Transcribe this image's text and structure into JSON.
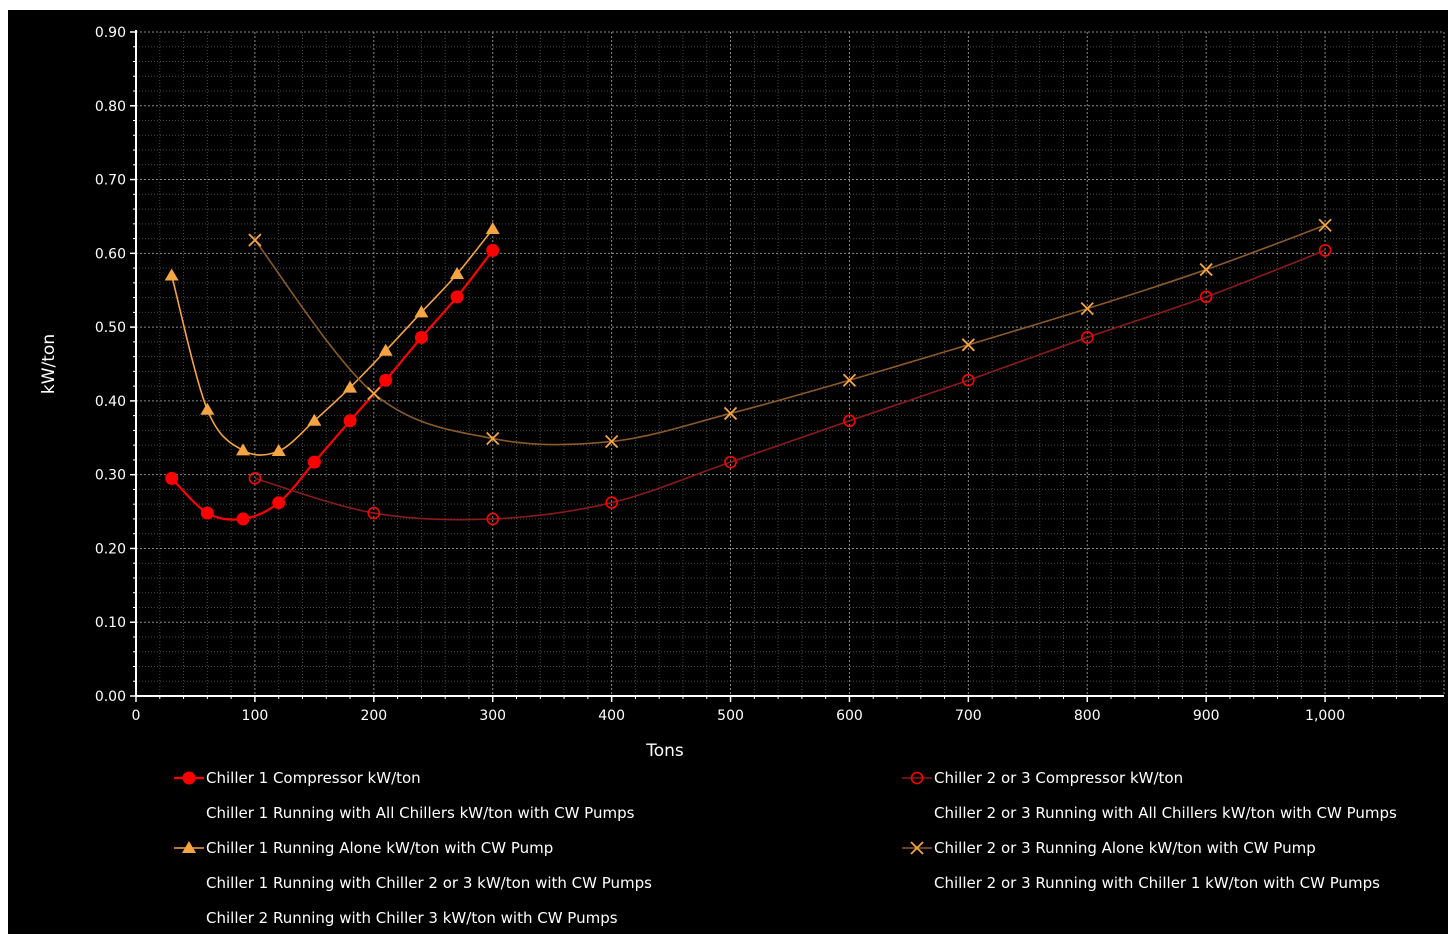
{
  "chart_data": {
    "type": "line",
    "title": "",
    "xlabel": "Tons",
    "ylabel": "kW/ton",
    "xlim": [
      0,
      1100
    ],
    "ylim": [
      0,
      0.9
    ],
    "x_ticks": [
      0,
      100,
      200,
      300,
      400,
      500,
      600,
      700,
      800,
      900,
      1000
    ],
    "x_tick_labels": [
      "0",
      "100",
      "200",
      "300",
      "400",
      "500",
      "600",
      "700",
      "800",
      "900",
      "1,000"
    ],
    "y_ticks": [
      0,
      0.1,
      0.2,
      0.3,
      0.4,
      0.5,
      0.6,
      0.7,
      0.8,
      0.9
    ],
    "y_tick_labels": [
      "0.00",
      "0.10",
      "0.20",
      "0.30",
      "0.40",
      "0.50",
      "0.60",
      "0.70",
      "0.80",
      "0.90"
    ],
    "grid": true,
    "background": "#000000",
    "legend_position": "bottom",
    "series": [
      {
        "name": "Chiller 1 Compressor kW/ton",
        "marker": "filled-circle",
        "color": "#ff0000",
        "x": [
          30,
          60,
          90,
          120,
          150,
          180,
          210,
          240,
          270,
          300
        ],
        "y": [
          0.295,
          0.248,
          0.24,
          0.262,
          0.317,
          0.373,
          0.428,
          0.486,
          0.541,
          0.604
        ]
      },
      {
        "name": "Chiller 2 or 3 Compressor kW/ton",
        "marker": "open-circle",
        "color": "#8b1a1a",
        "marker_color": "#ff0000",
        "x": [
          100,
          200,
          300,
          400,
          500,
          600,
          700,
          800,
          900,
          1000
        ],
        "y": [
          0.295,
          0.248,
          0.24,
          0.262,
          0.317,
          0.373,
          0.428,
          0.486,
          0.541,
          0.604
        ]
      },
      {
        "name": "Chiller 1 Running with All Chillers kW/ton with CW Pumps",
        "marker": "none",
        "x": [],
        "y": []
      },
      {
        "name": "Chiller 2 or 3 Running with All Chillers kW/ton with CW Pumps",
        "marker": "none",
        "x": [],
        "y": []
      },
      {
        "name": "Chiller 1 Running Alone kW/ton with CW Pump",
        "marker": "triangle",
        "color": "#f4a442",
        "x": [
          30,
          60,
          90,
          120,
          150,
          180,
          210,
          240,
          270,
          300
        ],
        "y": [
          0.57,
          0.388,
          0.333,
          0.332,
          0.373,
          0.418,
          0.468,
          0.52,
          0.572,
          0.633
        ]
      },
      {
        "name": "Chiller 2 or 3 Running Alone kW/ton with CW Pump",
        "marker": "x",
        "color": "#8b5a2b",
        "marker_color": "#f4a442",
        "x": [
          100,
          200,
          300,
          400,
          500,
          600,
          700,
          800,
          900,
          1000
        ],
        "y": [
          0.618,
          0.41,
          0.349,
          0.345,
          0.383,
          0.428,
          0.476,
          0.525,
          0.578,
          0.638
        ]
      },
      {
        "name": "Chiller 1 Running with Chiller 2 or 3 kW/ton with CW Pumps",
        "marker": "none",
        "x": [],
        "y": []
      },
      {
        "name": "Chiller 2 or 3 Running with Chiller 1 kW/ton with CW Pumps",
        "marker": "none",
        "x": [],
        "y": []
      },
      {
        "name": "Chiller 2 Running with Chiller 3 kW/ton with CW Pumps",
        "marker": "none",
        "x": [],
        "y": []
      }
    ]
  }
}
